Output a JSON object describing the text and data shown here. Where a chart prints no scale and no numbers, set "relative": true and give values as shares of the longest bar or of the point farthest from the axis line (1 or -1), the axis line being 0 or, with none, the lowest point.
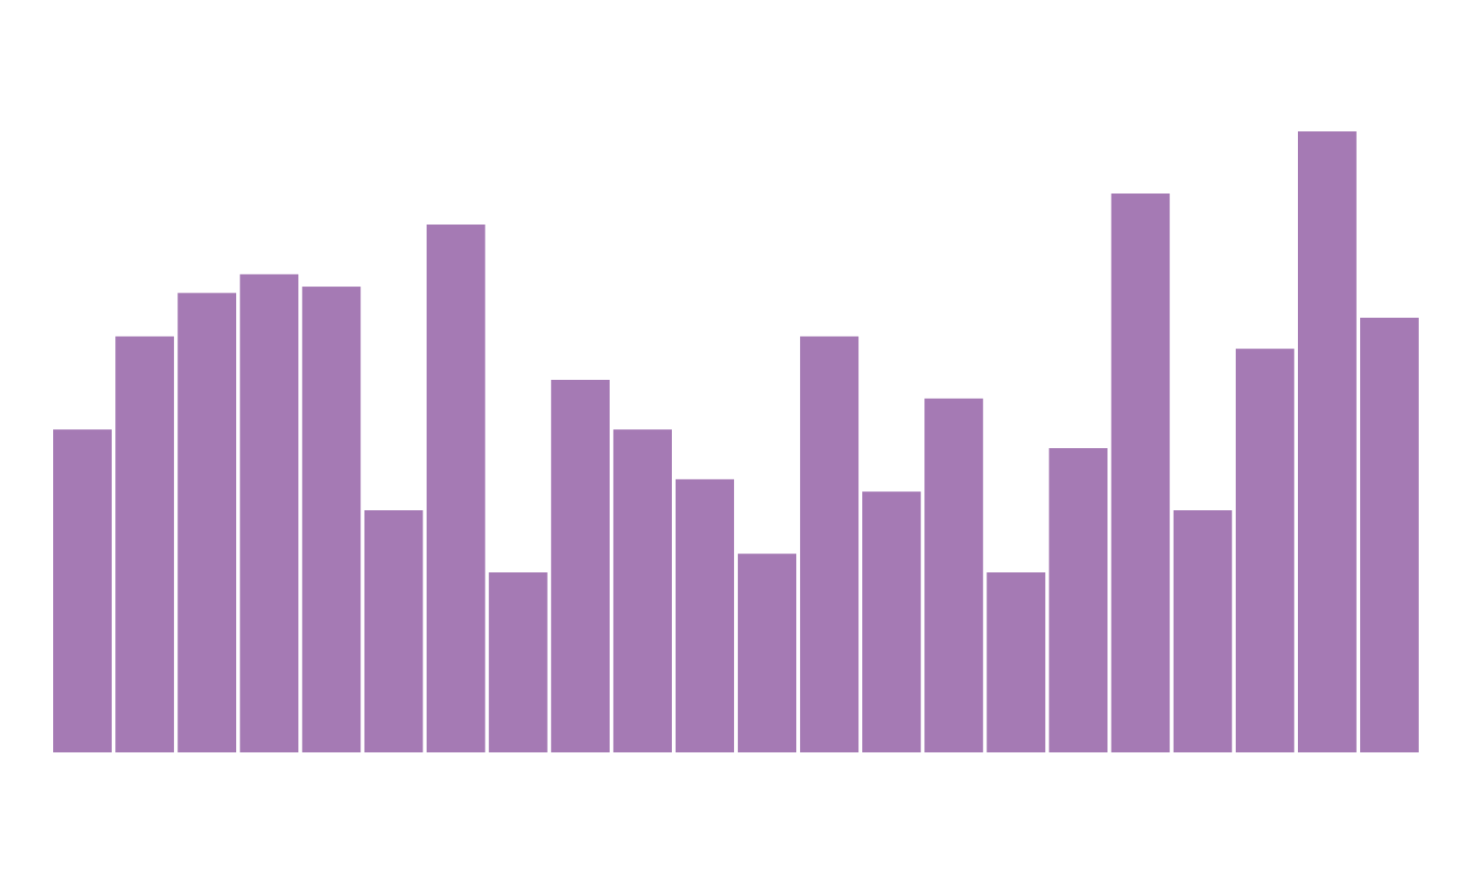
{
  "chart_data": {
    "type": "bar",
    "relative": true,
    "categories": [
      null,
      null,
      null,
      null,
      null,
      null,
      null,
      null,
      null,
      null,
      null,
      null,
      null,
      null,
      null,
      null,
      null,
      null,
      null,
      null,
      null,
      null
    ],
    "values": [
      0.52,
      0.67,
      0.74,
      0.77,
      0.75,
      0.39,
      0.85,
      0.29,
      0.6,
      0.52,
      0.44,
      0.32,
      0.67,
      0.42,
      0.57,
      0.29,
      0.49,
      0.9,
      0.39,
      0.65,
      1,
      0.7
    ],
    "color": "#a57ab4"
  }
}
